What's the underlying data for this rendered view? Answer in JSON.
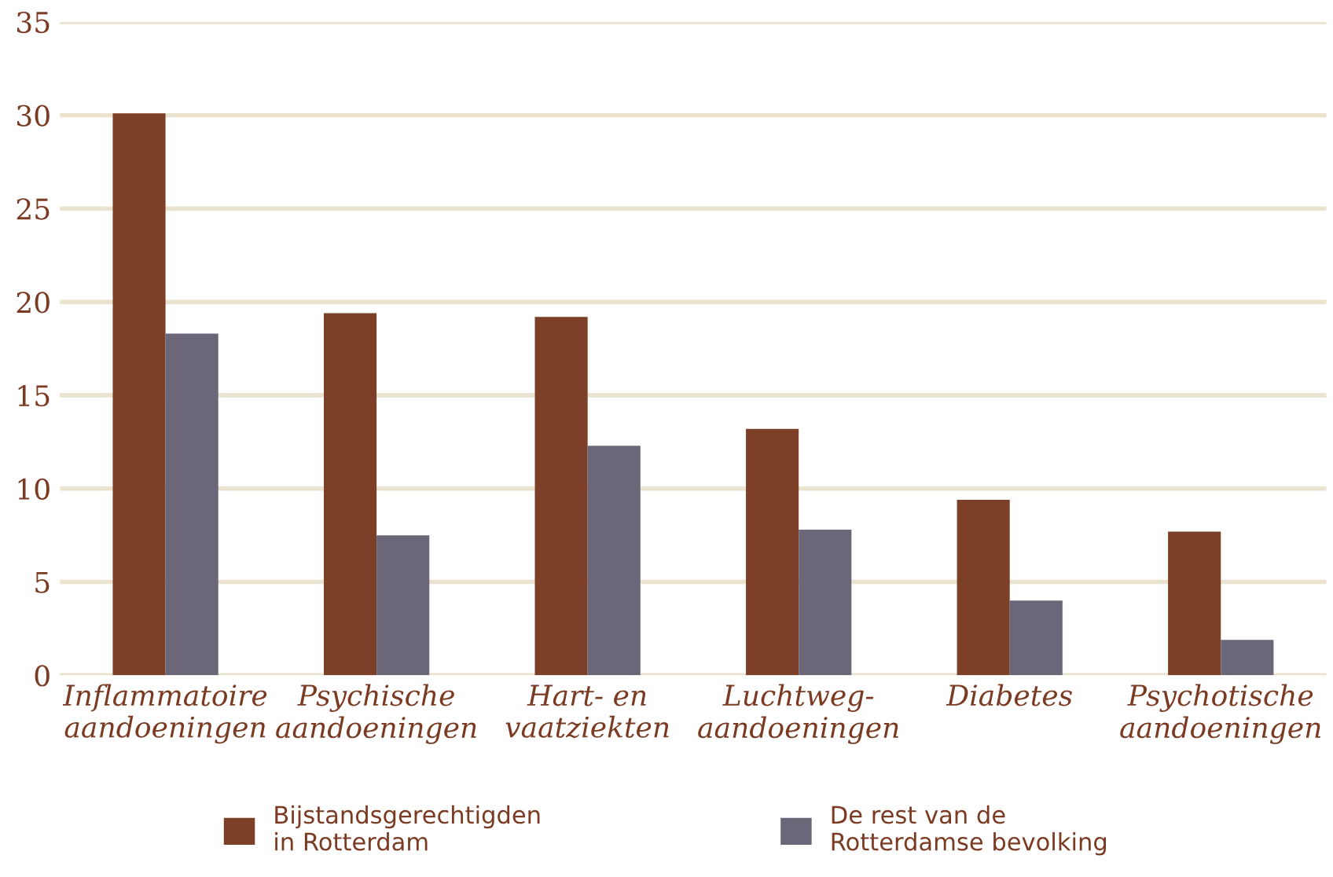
{
  "chart_data": {
    "type": "bar",
    "categories": [
      "Inflammatoire\naandoeningen",
      "Psychische\naandoeningen",
      "Hart- en\nvaatziekten",
      "Luchtweg-\naandoeningen",
      "Diabetes",
      "Psychotische\naandoeningen"
    ],
    "series": [
      {
        "name": "Bijstandsgerechtigden\nin Rotterdam",
        "color": "#7b4027",
        "values": [
          30.1,
          19.4,
          19.2,
          13.2,
          9.4,
          7.7
        ]
      },
      {
        "name": "De rest van de\nRotterdamse bevolking",
        "color": "#6b6678",
        "values": [
          18.3,
          7.5,
          12.3,
          7.8,
          4.0,
          1.9
        ]
      }
    ],
    "ylim": [
      0,
      35
    ],
    "yticks": [
      0,
      5,
      10,
      15,
      20,
      25,
      30,
      35
    ],
    "grid": "y",
    "legend": "bottom"
  }
}
